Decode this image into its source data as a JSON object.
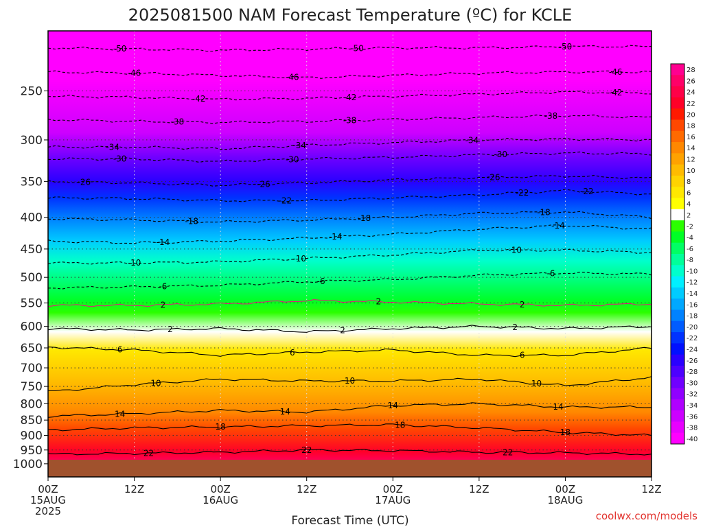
{
  "chart_data": {
    "type": "heatmap",
    "title": "2025081500 NAM Forecast Temperature (ºC) for KCLE",
    "xlabel": "Forecast Time (UTC)",
    "ylabel": "",
    "x_ticks": [
      {
        "hour": 0,
        "lines": [
          "00Z",
          "15AUG",
          "2025"
        ]
      },
      {
        "hour": 12,
        "lines": [
          "12Z"
        ]
      },
      {
        "hour": 24,
        "lines": [
          "00Z",
          "16AUG"
        ]
      },
      {
        "hour": 36,
        "lines": [
          "12Z"
        ]
      },
      {
        "hour": 48,
        "lines": [
          "00Z",
          "17AUG"
        ]
      },
      {
        "hour": 60,
        "lines": [
          "12Z"
        ]
      },
      {
        "hour": 72,
        "lines": [
          "00Z",
          "18AUG"
        ]
      },
      {
        "hour": 84,
        "lines": [
          "12Z"
        ]
      }
    ],
    "xlim": [
      0,
      84
    ],
    "y_ticks": [
      250,
      300,
      350,
      400,
      450,
      500,
      550,
      600,
      650,
      700,
      750,
      800,
      850,
      900,
      950,
      1000
    ],
    "ylim": [
      1050,
      200
    ],
    "y_scale": "log",
    "surface_pressure_hpa": 985,
    "grid": true,
    "colorbar": {
      "levels": [
        28,
        26,
        24,
        22,
        20,
        18,
        16,
        14,
        12,
        10,
        8,
        6,
        4,
        2,
        -2,
        -4,
        -6,
        -8,
        -10,
        -12,
        -14,
        -16,
        -18,
        -20,
        -22,
        -24,
        -26,
        -28,
        -30,
        -32,
        -34,
        -36,
        -38,
        -40
      ],
      "labels": [
        "28",
        "26",
        "24",
        "22",
        "20",
        "18",
        "16",
        "14",
        "12",
        "10",
        "8",
        "6",
        "4",
        "2",
        "-2",
        "-4",
        "-6",
        "-8",
        "-10",
        "-12",
        "-14",
        "-16",
        "-18",
        "-20",
        "-22",
        "-24",
        "-26",
        "-28",
        "-30",
        "-32",
        "-34",
        "-36",
        "-38",
        "-40"
      ],
      "colors": [
        "#ff0090",
        "#ff0068",
        "#ff0048",
        "#ff0028",
        "#ff1a00",
        "#ff4800",
        "#ff6a00",
        "#ff8800",
        "#ffa200",
        "#ffbb00",
        "#ffd300",
        "#ffe800",
        "#ffff00",
        "#ffffff",
        "#2bff00",
        "#00ff26",
        "#00ff64",
        "#00ff9a",
        "#00ffcc",
        "#00f0ff",
        "#00ccff",
        "#00a8ff",
        "#0082ff",
        "#005cff",
        "#0032ff",
        "#0010ff",
        "#2a00ff",
        "#4d00ff",
        "#7000ff",
        "#9000ff",
        "#b000ff",
        "#cd00ff",
        "#e800ff",
        "#ff00ff"
      ]
    },
    "isotherms": [
      {
        "temp": -50,
        "p": [
          213,
          214,
          215,
          214,
          213,
          213,
          212,
          212
        ],
        "label_x": [
          10,
          43,
          72
        ]
      },
      {
        "temp": -46,
        "p": [
          233,
          234,
          236,
          238,
          236,
          234,
          233,
          233
        ],
        "label_x": [
          12,
          34,
          79
        ]
      },
      {
        "temp": -42,
        "p": [
          255,
          256,
          258,
          257,
          255,
          253,
          251,
          252
        ],
        "label_x": [
          21,
          42,
          79
        ]
      },
      {
        "temp": -38,
        "p": [
          278,
          280,
          281,
          280,
          278,
          276,
          274,
          276
        ],
        "label_x": [
          18,
          42,
          70
        ]
      },
      {
        "temp": -34,
        "p": [
          308,
          308,
          310,
          306,
          303,
          300,
          299,
          300
        ],
        "label_x": [
          9,
          35,
          59
        ]
      },
      {
        "temp": -30,
        "p": [
          322,
          322,
          325,
          322,
          320,
          317,
          315,
          316
        ],
        "label_x": [
          10,
          34,
          63
        ]
      },
      {
        "temp": -26,
        "p": [
          350,
          352,
          355,
          352,
          348,
          345,
          343,
          346
        ],
        "label_x": [
          5,
          30,
          62
        ]
      },
      {
        "temp": -22,
        "p": [
          372,
          373,
          376,
          376,
          372,
          368,
          362,
          367
        ],
        "label_x": [
          33,
          66,
          75
        ]
      },
      {
        "temp": -18,
        "p": [
          402,
          404,
          407,
          404,
          400,
          394,
          392,
          400
        ],
        "label_x": [
          20,
          44,
          69
        ]
      },
      {
        "temp": -14,
        "p": [
          437,
          440,
          437,
          432,
          426,
          418,
          412,
          418
        ],
        "label_x": [
          16,
          40,
          71
        ]
      },
      {
        "temp": -10,
        "p": [
          474,
          474,
          472,
          466,
          460,
          452,
          452,
          456
        ],
        "label_x": [
          12,
          35,
          65
        ]
      },
      {
        "temp": -6,
        "p": [
          520,
          518,
          515,
          508,
          504,
          496,
          492,
          494
        ],
        "label_x": [
          16,
          38,
          70
        ]
      },
      {
        "temp": 2,
        "p": [
          555,
          555,
          552,
          545,
          548,
          552,
          555,
          552
        ],
        "label_x": [
          16,
          46,
          66
        ]
      },
      {
        "temp": 2,
        "p": [
          605,
          608,
          605,
          612,
          605,
          600,
          605,
          600
        ],
        "label_x": [
          17,
          41,
          65
        ]
      },
      {
        "temp": 6,
        "p": [
          648,
          655,
          668,
          660,
          655,
          668,
          668,
          650
        ],
        "label_x": [
          10,
          34,
          66
        ]
      },
      {
        "temp": 10,
        "p": [
          765,
          745,
          730,
          735,
          735,
          730,
          748,
          725
        ],
        "label_x": [
          15,
          42,
          68
        ]
      },
      {
        "temp": 14,
        "p": [
          838,
          830,
          820,
          825,
          805,
          800,
          810,
          810
        ],
        "label_x": [
          10,
          33,
          48,
          71
        ]
      },
      {
        "temp": 18,
        "p": [
          882,
          875,
          872,
          868,
          865,
          875,
          890,
          900
        ],
        "label_x": [
          24,
          49,
          72
        ]
      },
      {
        "temp": 22,
        "p": [
          965,
          962,
          958,
          950,
          952,
          958,
          960,
          965
        ],
        "label_x": [
          14,
          36,
          64
        ]
      }
    ]
  },
  "credit": "coolwx.com/models"
}
